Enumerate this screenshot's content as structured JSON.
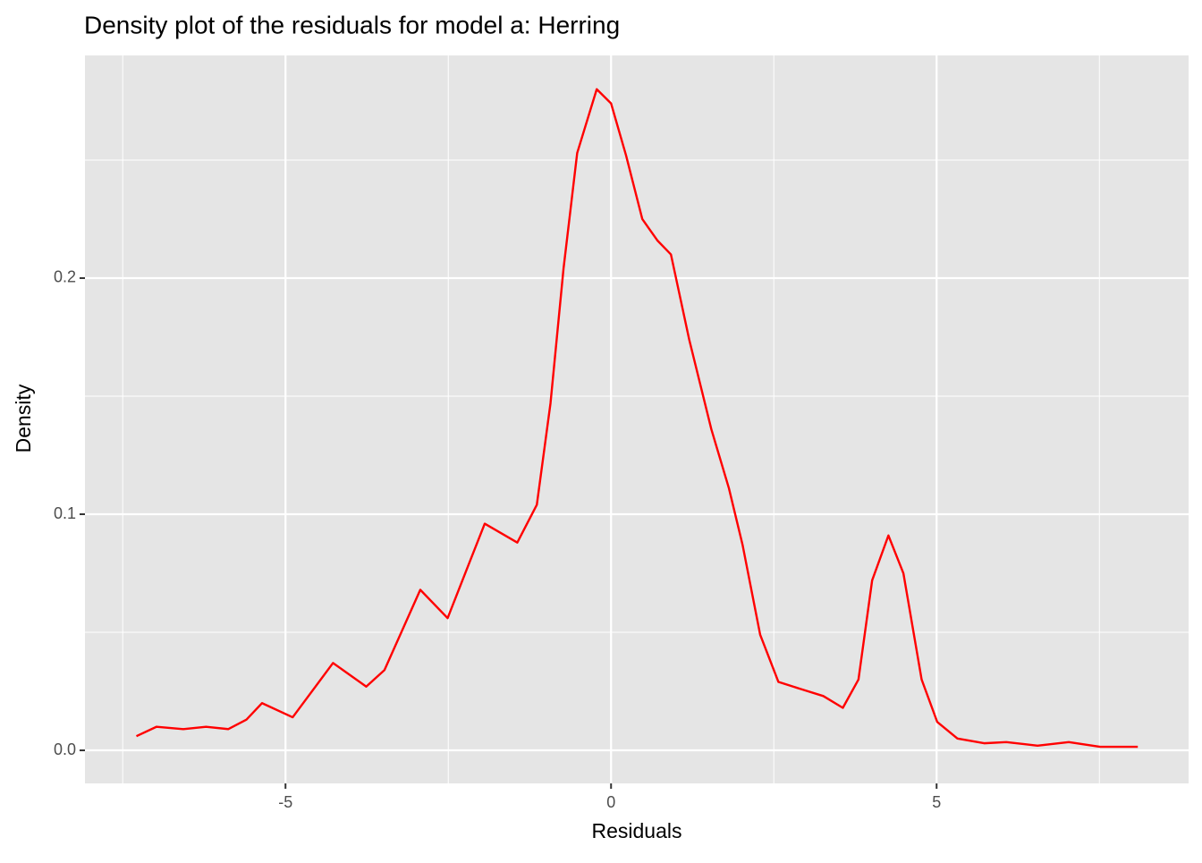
{
  "chart_data": {
    "type": "line",
    "title": "Density plot of the residuals for model a: Herring",
    "x_label": "Residuals",
    "y_label": "Density",
    "x": [
      -7.29,
      -6.98,
      -6.57,
      -6.22,
      -5.88,
      -5.6,
      -5.36,
      -4.89,
      -4.27,
      -3.76,
      -3.48,
      -2.93,
      -2.51,
      -2.24,
      -1.94,
      -1.44,
      -1.14,
      -0.93,
      -0.73,
      -0.52,
      -0.22,
      0,
      0.23,
      0.48,
      0.71,
      0.92,
      1.2,
      1.54,
      1.81,
      2.02,
      2.29,
      2.57,
      2.91,
      3.26,
      3.56,
      3.8,
      4.01,
      4.26,
      4.49,
      4.77,
      5.01,
      5.32,
      5.73,
      6.07,
      6.55,
      7.03,
      7.51,
      8.09
    ],
    "series": [
      {
        "name": "density",
        "color": "#ff0000",
        "values": [
          0.006,
          0.01,
          0.009,
          0.01,
          0.009,
          0.013,
          0.02,
          0.014,
          0.037,
          0.027,
          0.034,
          0.068,
          0.056,
          0.075,
          0.096,
          0.088,
          0.104,
          0.147,
          0.204,
          0.253,
          0.28,
          0.274,
          0.252,
          0.225,
          0.216,
          0.21,
          0.174,
          0.136,
          0.111,
          0.087,
          0.049,
          0.029,
          0.026,
          0.023,
          0.018,
          0.03,
          0.072,
          0.091,
          0.075,
          0.03,
          0.012,
          0.005,
          0.003,
          0.0035,
          0.002,
          0.0035,
          0.0015,
          0.0015
        ]
      }
    ],
    "xlim": [
      -8.08,
      8.87
    ],
    "ylim": [
      -0.014,
      0.2943
    ],
    "xticks": [
      -5,
      0,
      5
    ],
    "yticks": [
      {
        "value": 0,
        "label": "0.0"
      },
      0.1,
      0.2
    ],
    "x_minor_ticks": [
      -7.5,
      -2.5,
      2.5,
      7.5
    ],
    "y_minor_ticks": [
      0.05,
      0.15,
      0.25
    ],
    "grid": true
  }
}
